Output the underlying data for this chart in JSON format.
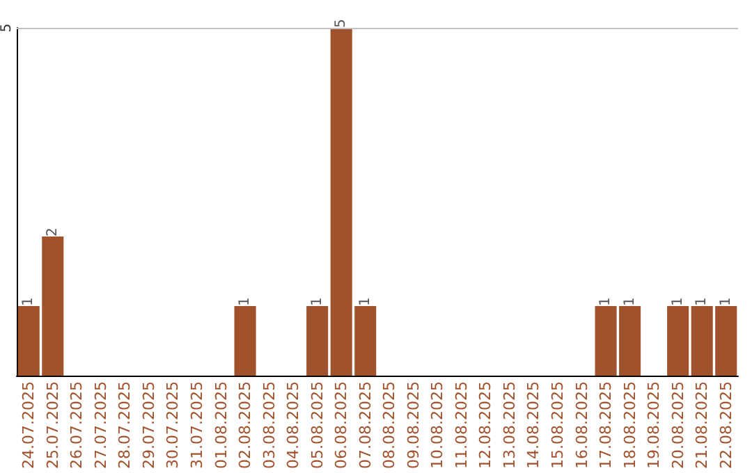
{
  "chart_data": {
    "type": "bar",
    "categories": [
      "24.07.2025",
      "25.07.2025",
      "26.07.2025",
      "27.07.2025",
      "28.07.2025",
      "29.07.2025",
      "30.07.2025",
      "31.07.2025",
      "01.08.2025",
      "02.08.2025",
      "03.08.2025",
      "04.08.2025",
      "05.08.2025",
      "06.08.2025",
      "07.08.2025",
      "08.08.2025",
      "09.08.2025",
      "10.08.2025",
      "11.08.2025",
      "12.08.2025",
      "13.08.2025",
      "14.08.2025",
      "15.08.2025",
      "16.08.2025",
      "17.08.2025",
      "18.08.2025",
      "19.08.2025",
      "20.08.2025",
      "21.08.2025",
      "22.08.2025"
    ],
    "values": [
      1,
      2,
      0,
      0,
      0,
      0,
      0,
      0,
      0,
      1,
      0,
      0,
      1,
      5,
      1,
      0,
      0,
      0,
      0,
      0,
      0,
      0,
      0,
      0,
      1,
      1,
      0,
      1,
      1,
      1
    ],
    "value_labels": [
      "1",
      "2",
      null,
      null,
      null,
      null,
      null,
      null,
      null,
      "1",
      null,
      null,
      "1",
      "5",
      "1",
      null,
      null,
      null,
      null,
      null,
      null,
      null,
      null,
      null,
      "1",
      "1",
      null,
      "1",
      "1",
      "1"
    ],
    "color": "#a0522d",
    "ylim": [
      0,
      5
    ],
    "yticks": [
      5
    ],
    "ref_lines": [
      {
        "axis": "y",
        "value": 5,
        "color": "#c0c0c0"
      }
    ]
  }
}
